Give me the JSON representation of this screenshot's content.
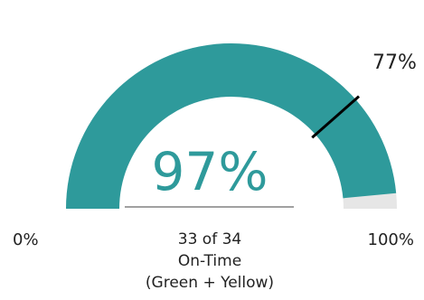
{
  "chart_data": {
    "type": "gauge",
    "value": 97,
    "value_label": "97%",
    "min": 0,
    "max": 100,
    "min_label": "0%",
    "max_label": "100%",
    "target": 77,
    "target_label": "77%",
    "detail_line_1": "33 of 34",
    "detail_line_2": "On-Time",
    "detail_line_3": "(Green + Yellow)",
    "numerator": 33,
    "denominator": 34
  },
  "colors": {
    "fill": "#2e9a9b",
    "track": "#e6e6e6",
    "target_marker": "#000000",
    "value_text": "#2e9a9b",
    "label_text": "#222222",
    "divider": "#808080"
  }
}
